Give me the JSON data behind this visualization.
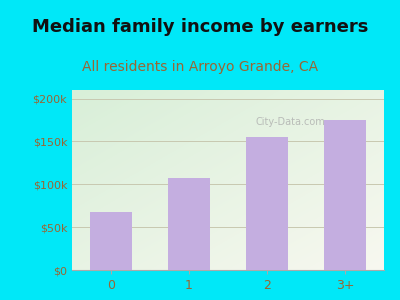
{
  "title": "Median family income by earners",
  "subtitle": "All residents in Arroyo Grande, CA",
  "categories": [
    "0",
    "1",
    "2",
    "3+"
  ],
  "values": [
    68000,
    107000,
    155000,
    175000
  ],
  "bar_color": "#c4aee0",
  "title_fontsize": 13,
  "subtitle_fontsize": 10,
  "yticks": [
    0,
    50000,
    100000,
    150000,
    200000
  ],
  "ytick_labels": [
    "$0",
    "$50k",
    "$100k",
    "$150k",
    "$200k"
  ],
  "ylim": [
    0,
    210000
  ],
  "background_outer": "#00e8f8",
  "background_plot_topleft": "#d8efd8",
  "background_plot_bottomright": "#f8f8f0",
  "grid_color": "#c8c8b0",
  "title_color": "#111111",
  "subtitle_color": "#996633",
  "tick_label_color": "#996633"
}
